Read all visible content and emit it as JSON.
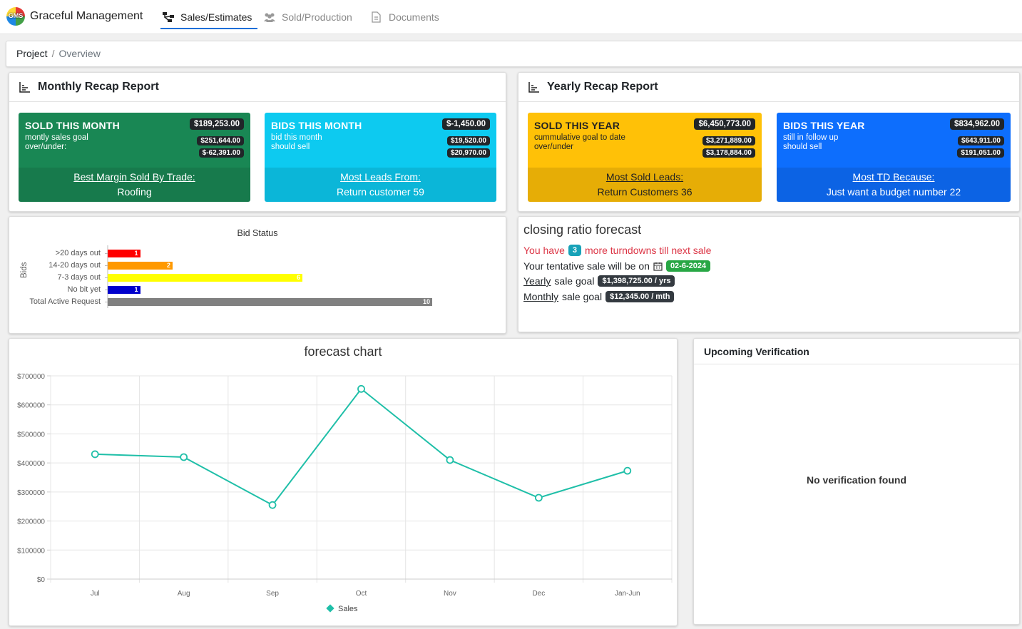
{
  "app": {
    "brand": "Graceful Management",
    "logo_text": "GMS"
  },
  "nav": {
    "tabs": [
      {
        "label": "Sales/Estimates",
        "icon": "sitemap-icon",
        "active": true
      },
      {
        "label": "Sold/Production",
        "icon": "users-icon",
        "active": false
      },
      {
        "label": "Documents",
        "icon": "document-icon",
        "active": false
      }
    ]
  },
  "breadcrumb": {
    "root": "Project",
    "sep": "/",
    "current": "Overview"
  },
  "monthly": {
    "title": "Monthly Recap Report",
    "sold": {
      "title": "SOLD THIS MONTH",
      "amount": "$189,253.00",
      "line1": "montly sales goal",
      "val1": "$251,644.00",
      "line2": "over/under:",
      "val2": "$-62,391.00",
      "footer_label": "Best Margin Sold By Trade:",
      "footer_value": "Roofing"
    },
    "bids": {
      "title": "BIDS THIS MONTH",
      "amount": "$-1,450.00",
      "line1": "bid this month",
      "val1": "$19,520.00",
      "line2": "should sell",
      "val2": "$20,970.00",
      "footer_label": "Most Leads From:",
      "footer_value": "Return customer 59"
    }
  },
  "yearly": {
    "title": "Yearly Recap Report",
    "sold": {
      "title": "SOLD THIS YEAR",
      "amount": "$6,450,773.00",
      "line1": "cummulative goal to date",
      "val1": "$3,271,889.00",
      "line2": "over/under",
      "val2": "$3,178,884.00",
      "footer_label": "Most Sold Leads:",
      "footer_value": "Return Customers 36"
    },
    "bids": {
      "title": "BIDS THIS YEAR",
      "amount": "$834,962.00",
      "line1": "still in follow up",
      "val1": "$643,911.00",
      "line2": "should sell",
      "val2": "$191,051.00",
      "footer_label": "Most TD Because:",
      "footer_value": "Just want a budget number 22"
    }
  },
  "bid_status": {
    "title": "Bid Status",
    "ylabel": "Bids",
    "rows": [
      {
        "label": ">20 days out",
        "value": 1,
        "color": "#ff0000"
      },
      {
        "label": "14-20 days out",
        "value": 2,
        "color": "#ff9900"
      },
      {
        "label": "7-3 days out",
        "value": 6,
        "color": "#ffff00"
      },
      {
        "label": "No bit yet",
        "value": 1,
        "color": "#0000cc"
      },
      {
        "label": "Total Active Request",
        "value": 10,
        "color": "#808080"
      }
    ]
  },
  "closing": {
    "title": "closing ratio forecast",
    "you_have": "You have",
    "turndowns": "3",
    "more_text": "more turndowns till next sale",
    "tentative_text": "Your tentative sale will be on",
    "tentative_date": "02-6-2024",
    "yearly_word": "Yearly",
    "yearly_rest": "sale goal",
    "yearly_goal": "$1,398,725.00 / yrs",
    "monthly_word": "Monthly",
    "monthly_rest": "sale goal",
    "monthly_goal": "$12,345.00 / mth"
  },
  "chart_data": {
    "type": "line",
    "title": "forecast chart",
    "categories": [
      "Jul",
      "Aug",
      "Sep",
      "Oct",
      "Nov",
      "Dec",
      "Jan-Jun"
    ],
    "series": [
      {
        "name": "Sales",
        "values": [
          430000,
          420000,
          255000,
          655000,
          410000,
          280000,
          373000
        ],
        "color": "#1fbfa8"
      }
    ],
    "yticks": [
      "$700000",
      "$600000",
      "$500000",
      "$400000",
      "$300000",
      "$200000",
      "$100000",
      "$0"
    ],
    "ylim": [
      0,
      700000
    ],
    "grid": true,
    "legend": "bottom"
  },
  "verification": {
    "title": "Upcoming Verification",
    "empty": "No verification found"
  }
}
